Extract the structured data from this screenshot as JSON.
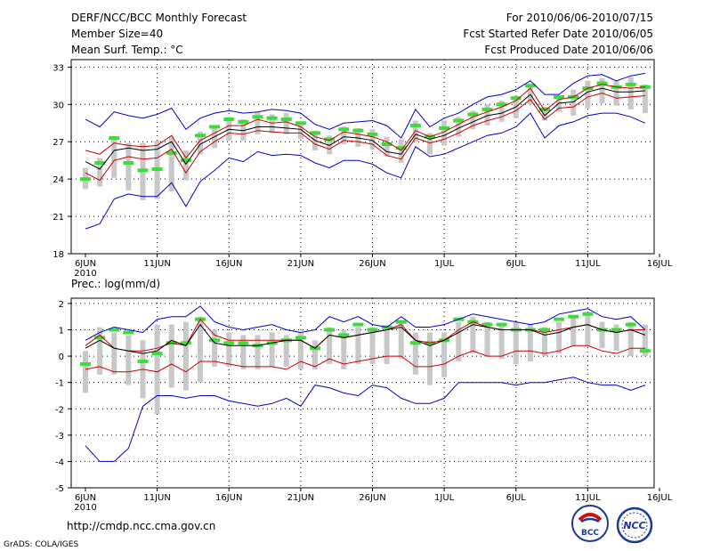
{
  "header": {
    "title": "DERF/NCC/BCC Monthly Forecast",
    "member_size": "Member Size=40",
    "variable": "Mean Surf. Temp.: °C",
    "period": "For 2010/06/06-2010/07/15",
    "started": "Fcst Started Refer Date 2010/06/05",
    "produced": "Fcst Produced Date 2010/06/06"
  },
  "footer": {
    "url": "http://cmdp.ncc.cma.gov.cn",
    "credit": "GrADS: COLA/IGES",
    "logo_bcc": "BCC",
    "logo_ncc": "NCC"
  },
  "colors": {
    "upper": "#0000cc",
    "lower": "#0000cc",
    "mean": "#000000",
    "band": "#cc0000",
    "box": "#c8c8c8",
    "obs": "#3cdc3c"
  },
  "chart_data": [
    {
      "type": "line",
      "title": "Mean Surf. Temp.: °C",
      "x_ticks": [
        "6JUN",
        "11JUN",
        "16JUN",
        "21JUN",
        "26JUN",
        "1JUL",
        "6JUL",
        "11JUL",
        "16JUL"
      ],
      "x_year": "2010",
      "y_ticks": [
        "18",
        "21",
        "24",
        "27",
        "30",
        "33"
      ],
      "ylim": [
        18,
        33.6
      ],
      "days": 40,
      "series": [
        {
          "name": "max",
          "values": [
            28.8,
            28.2,
            29.4,
            29.1,
            28.9,
            29.2,
            29.7,
            28.0,
            28.9,
            29.3,
            29.5,
            29.3,
            29.4,
            29.6,
            29.5,
            29.3,
            28.4,
            28.0,
            28.5,
            28.6,
            28.7,
            28.3,
            27.3,
            29.6,
            28.2,
            28.9,
            29.3,
            30.0,
            30.6,
            30.8,
            31.2,
            31.9,
            30.8,
            30.8,
            31.7,
            32.3,
            32.4,
            31.9,
            32.3,
            32.5
          ]
        },
        {
          "name": "band_high",
          "values": [
            26.3,
            26.0,
            26.9,
            26.7,
            26.6,
            26.7,
            27.5,
            25.7,
            27.1,
            27.7,
            28.3,
            28.3,
            28.8,
            28.5,
            28.6,
            28.2,
            27.4,
            27.1,
            27.8,
            27.6,
            27.4,
            27.0,
            26.3,
            27.9,
            27.4,
            27.8,
            28.4,
            29.0,
            29.4,
            29.8,
            30.3,
            31.3,
            29.5,
            30.4,
            30.6,
            31.3,
            31.6,
            31.4,
            31.3,
            31.4
          ]
        },
        {
          "name": "mean",
          "values": [
            25.4,
            24.8,
            26.3,
            26.5,
            26.3,
            26.4,
            27.0,
            25.2,
            26.8,
            27.4,
            28.0,
            27.9,
            28.2,
            28.2,
            28.1,
            28.0,
            27.1,
            26.7,
            27.4,
            27.3,
            27.1,
            26.2,
            26.0,
            27.6,
            27.2,
            27.5,
            28.1,
            28.6,
            29.1,
            29.3,
            29.8,
            30.8,
            29.1,
            30.1,
            30.2,
            31.0,
            31.3,
            31.0,
            31.0,
            31.1
          ]
        },
        {
          "name": "band_low",
          "values": [
            24.5,
            23.9,
            25.5,
            25.8,
            25.6,
            25.7,
            26.4,
            24.5,
            26.2,
            27.0,
            27.7,
            27.6,
            27.9,
            27.8,
            27.7,
            27.7,
            26.8,
            26.4,
            27.1,
            27.0,
            26.8,
            25.9,
            25.6,
            27.3,
            26.9,
            27.2,
            27.7,
            28.3,
            28.7,
            29.0,
            29.5,
            30.4,
            28.8,
            29.7,
            29.8,
            30.6,
            30.9,
            30.5,
            30.6,
            30.7
          ]
        },
        {
          "name": "min",
          "values": [
            20.0,
            20.4,
            22.4,
            22.8,
            22.6,
            22.6,
            23.7,
            21.8,
            23.8,
            24.7,
            25.7,
            25.4,
            26.2,
            25.9,
            26.0,
            25.9,
            25.3,
            24.9,
            25.5,
            25.5,
            25.2,
            24.5,
            24.1,
            26.6,
            25.8,
            26.0,
            26.5,
            27.0,
            27.5,
            27.7,
            28.2,
            29.3,
            27.3,
            28.3,
            28.6,
            29.1,
            29.3,
            29.3,
            29.0,
            28.5
          ]
        },
        {
          "name": "box_high",
          "values": [
            24.9,
            25.7,
            27.3,
            26.9,
            26.9,
            27.1,
            27.4,
            26.3,
            27.8,
            28.3,
            29.0,
            28.8,
            29.4,
            29.2,
            29.3,
            28.5,
            27.9,
            27.5,
            28.2,
            28.1,
            28.0,
            27.4,
            27.2,
            28.7,
            27.7,
            28.7,
            29.0,
            29.5,
            30.0,
            30.3,
            30.7,
            31.7,
            29.8,
            30.7,
            31.2,
            31.9,
            32.1,
            31.9,
            32.2,
            31.6
          ]
        },
        {
          "name": "box_low",
          "values": [
            23.2,
            23.4,
            24.1,
            23.1,
            22.3,
            22.4,
            23.0,
            23.9,
            26.0,
            26.5,
            27.1,
            27.1,
            27.6,
            27.7,
            27.6,
            27.2,
            26.3,
            26.0,
            26.8,
            26.6,
            26.4,
            25.8,
            25.3,
            27.0,
            26.0,
            26.7,
            27.4,
            28.0,
            28.3,
            28.6,
            28.9,
            30.0,
            28.7,
            29.4,
            29.1,
            29.7,
            30.1,
            29.9,
            29.6,
            29.3
          ]
        },
        {
          "name": "observed",
          "values": [
            24.0,
            25.3,
            27.3,
            25.3,
            24.7,
            24.8,
            26.1,
            25.5,
            27.5,
            28.2,
            28.8,
            28.6,
            29.0,
            28.9,
            28.8,
            28.5,
            27.7,
            27.2,
            28.0,
            27.9,
            27.6,
            26.8,
            26.5,
            28.3,
            27.4,
            28.1,
            28.7,
            29.2,
            29.6,
            30.0,
            30.5,
            31.5,
            29.6,
            30.6,
            30.6,
            31.3,
            31.7,
            31.4,
            31.6,
            31.4
          ]
        }
      ]
    },
    {
      "type": "line",
      "title": "Prec.: log(mm/d)",
      "x_ticks": [
        "6JUN",
        "11JUN",
        "16JUN",
        "21JUN",
        "26JUN",
        "1JUL",
        "6JUL",
        "11JUL",
        "16JUL"
      ],
      "x_year": "2010",
      "y_ticks": [
        "-5",
        "-4",
        "-3",
        "-2",
        "-1",
        "0",
        "1",
        "2"
      ],
      "ylim": [
        -5,
        2.2
      ],
      "days": 40,
      "series": [
        {
          "name": "max",
          "values": [
            0.6,
            0.9,
            1.1,
            1.0,
            0.9,
            1.4,
            1.5,
            1.5,
            1.9,
            1.3,
            1.1,
            1.0,
            1.1,
            1.2,
            1.0,
            0.9,
            1.0,
            1.5,
            1.3,
            1.5,
            1.2,
            1.1,
            1.5,
            1.1,
            1.1,
            1.2,
            1.4,
            1.6,
            1.5,
            1.4,
            1.3,
            1.2,
            1.3,
            1.6,
            1.7,
            1.8,
            1.5,
            1.4,
            1.5,
            1.0
          ]
        },
        {
          "name": "band_high",
          "values": [
            0.4,
            0.8,
            0.3,
            0.2,
            0.2,
            0.3,
            0.5,
            0.4,
            1.4,
            0.8,
            0.6,
            0.6,
            0.6,
            0.6,
            0.6,
            0.6,
            0.3,
            0.8,
            0.7,
            0.8,
            0.9,
            1.0,
            1.2,
            0.6,
            0.5,
            0.6,
            1.0,
            1.3,
            1.1,
            1.0,
            1.0,
            1.0,
            0.9,
            1.0,
            1.1,
            1.2,
            1.0,
            0.9,
            1.0,
            1.0
          ]
        },
        {
          "name": "mean",
          "values": [
            0.3,
            0.6,
            0.3,
            0.2,
            0.1,
            0.2,
            0.6,
            0.4,
            1.2,
            0.5,
            0.4,
            0.4,
            0.4,
            0.5,
            0.6,
            0.6,
            0.3,
            0.8,
            0.7,
            0.8,
            0.9,
            1.0,
            1.1,
            0.6,
            0.4,
            0.6,
            0.9,
            1.2,
            1.1,
            1.0,
            1.0,
            1.0,
            0.8,
            0.9,
            1.1,
            1.2,
            1.0,
            0.9,
            1.0,
            0.8
          ]
        },
        {
          "name": "band_low",
          "values": [
            -0.5,
            -0.4,
            -0.6,
            -0.6,
            -0.5,
            -0.6,
            -0.3,
            -0.6,
            -0.2,
            -0.2,
            -0.3,
            -0.4,
            -0.4,
            -0.4,
            -0.5,
            -0.2,
            -0.4,
            -0.1,
            -0.3,
            -0.2,
            -0.1,
            0.0,
            0.0,
            -0.4,
            -0.4,
            -0.3,
            0.0,
            0.2,
            0.0,
            0.0,
            0.2,
            0.2,
            0.1,
            0.2,
            0.4,
            0.4,
            0.2,
            0.1,
            0.3,
            0.3
          ]
        },
        {
          "name": "min",
          "values": [
            -3.4,
            -4.0,
            -4.0,
            -3.5,
            -1.9,
            -1.5,
            -1.5,
            -1.6,
            -1.5,
            -1.5,
            -1.7,
            -1.8,
            -1.9,
            -1.8,
            -1.6,
            -1.9,
            -1.1,
            -1.2,
            -1.4,
            -1.5,
            -1.1,
            -1.2,
            -1.6,
            -1.8,
            -1.8,
            -1.6,
            -1.0,
            -1.0,
            -1.0,
            -1.0,
            -1.1,
            -1.0,
            -1.0,
            -0.9,
            -0.8,
            -1.0,
            -1.1,
            -1.1,
            -1.3,
            -1.1
          ]
        },
        {
          "name": "box_high",
          "values": [
            0.2,
            1.1,
            0.9,
            0.8,
            0.6,
            1.2,
            1.2,
            1.3,
            1.5,
            1.0,
            0.9,
            0.8,
            0.8,
            0.9,
            0.8,
            0.9,
            0.6,
            1.1,
            1.0,
            1.1,
            1.1,
            1.1,
            1.3,
            0.9,
            0.9,
            0.9,
            1.3,
            1.5,
            1.3,
            1.2,
            1.3,
            1.2,
            1.1,
            1.3,
            1.5,
            1.6,
            1.3,
            1.2,
            1.3,
            1.2
          ]
        },
        {
          "name": "box_low",
          "values": [
            -1.4,
            -0.7,
            -0.7,
            -1.1,
            -1.6,
            -2.2,
            -1.2,
            -1.3,
            -1.0,
            -0.4,
            -0.4,
            -0.5,
            -0.5,
            -0.4,
            -0.4,
            -0.5,
            -0.5,
            -0.3,
            -0.5,
            -0.3,
            -0.3,
            -0.3,
            -0.1,
            -0.7,
            -1.1,
            -0.8,
            -0.2,
            0.1,
            0.0,
            -0.1,
            -0.3,
            -0.2,
            0.0,
            0.1,
            0.4,
            0.4,
            0.3,
            0.2,
            0.0,
            0.0
          ]
        },
        {
          "name": "observed",
          "values": [
            -0.3,
            0.7,
            1.0,
            0.9,
            -0.2,
            0.1,
            0.5,
            0.5,
            1.4,
            0.6,
            0.5,
            0.5,
            0.4,
            0.5,
            0.6,
            0.7,
            0.3,
            1.0,
            0.8,
            1.2,
            1.0,
            1.1,
            1.3,
            0.5,
            0.5,
            0.6,
            1.4,
            1.3,
            1.2,
            1.2,
            1.0,
            1.0,
            1.0,
            1.4,
            1.5,
            1.6,
            1.0,
            1.0,
            1.2,
            0.2
          ]
        }
      ]
    }
  ]
}
